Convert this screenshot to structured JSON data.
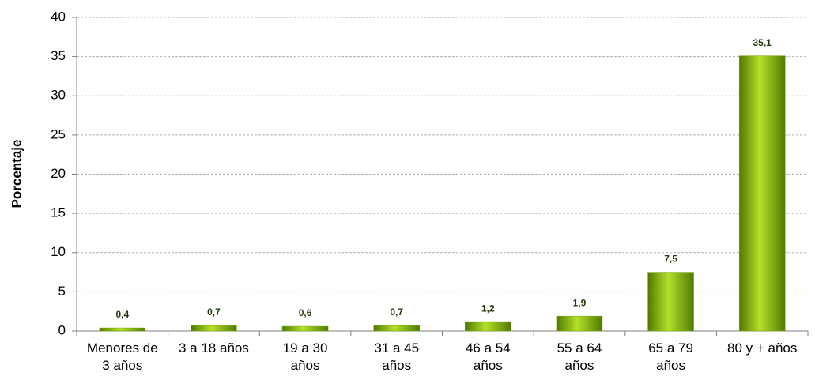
{
  "chart_data": {
    "type": "bar",
    "y_label": "Porcentaje",
    "categories": [
      "Menores de 3 años",
      "3 a 18 años",
      "19 a 30 años",
      "31 a 45 años",
      "46 a 54 años",
      "55 a 64 años",
      "65 a 79 años",
      "80 y + años"
    ],
    "values": [
      0.4,
      0.7,
      0.6,
      0.7,
      1.2,
      1.9,
      7.5,
      35.1
    ],
    "value_labels": [
      "0,4",
      "0,7",
      "0,6",
      "0,7",
      "1,2",
      "1,9",
      "7,5",
      "35,1"
    ],
    "color": "#7aa80e",
    "ylim": [
      0,
      40
    ],
    "yticks": [
      0,
      5,
      10,
      15,
      20,
      25,
      30,
      35,
      40
    ],
    "grid": true
  }
}
